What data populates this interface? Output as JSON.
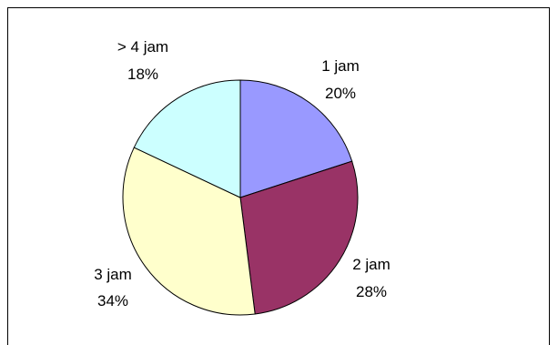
{
  "chart_data": {
    "type": "pie",
    "slices": [
      {
        "label": "1 jam",
        "percent_label": "20%",
        "value": 20,
        "color": "#9999ff"
      },
      {
        "label": "2 jam",
        "percent_label": "28%",
        "value": 28,
        "color": "#993366"
      },
      {
        "label": "3 jam",
        "percent_label": "34%",
        "value": 34,
        "color": "#ffffcc"
      },
      {
        "label": "> 4 jam",
        "percent_label": "18%",
        "value": 18,
        "color": "#ccffff"
      }
    ],
    "start_angle": "12 o'clock",
    "direction": "clockwise",
    "legend": "none",
    "data_labels": "outside",
    "title": ""
  }
}
